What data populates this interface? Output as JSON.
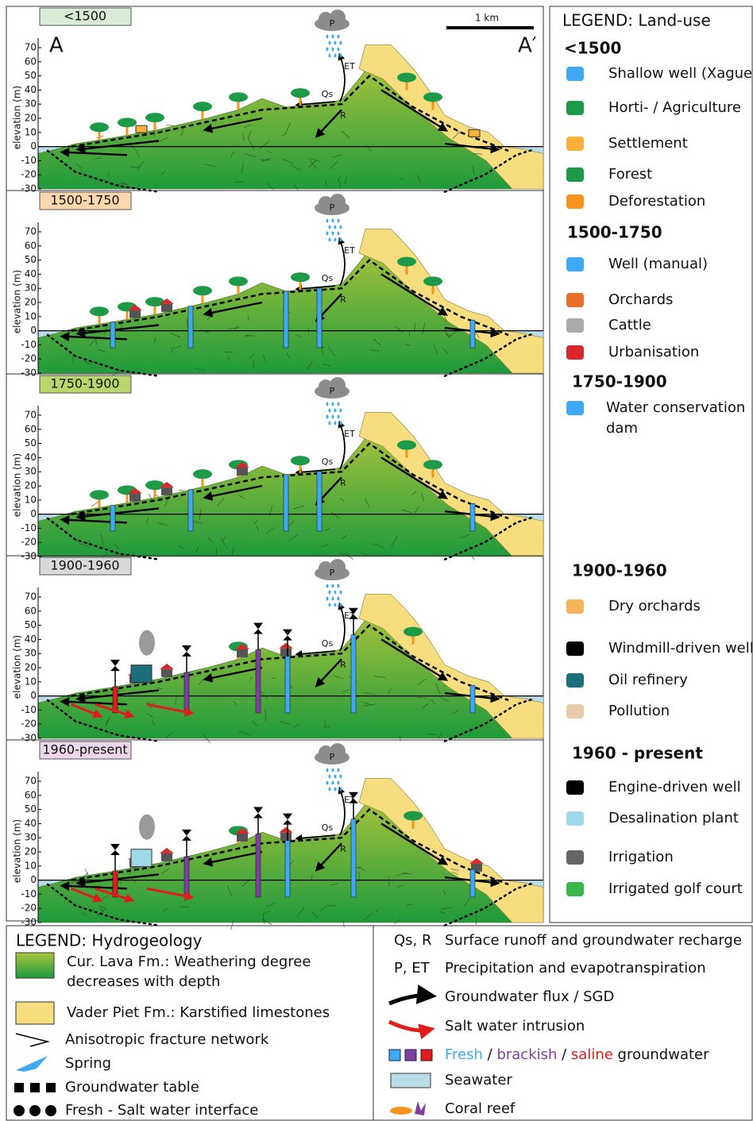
{
  "panels": [
    {
      "period": "<1500",
      "color": "#d6ecd6"
    },
    {
      "period": "1500-1750",
      "color": "#fcd7ad"
    },
    {
      "period": "1750-1900",
      "color": "#b9d66c"
    },
    {
      "period": "1900-1960",
      "color": "#d9d9d9"
    },
    {
      "period": "1960-present",
      "color": "#ecd6ea"
    }
  ],
  "axis": {
    "label": "elevation (m)",
    "ticks": [
      70,
      60,
      50,
      40,
      30,
      20,
      10,
      0,
      -10,
      -20,
      -30
    ]
  },
  "section": {
    "start": "A",
    "end": "A′",
    "scale": "1 km"
  },
  "flow_labels": {
    "precipitation": "P",
    "evapotranspiration": "ET",
    "runoff": "Qs",
    "recharge": "R"
  },
  "land_use_legend": {
    "title": "LEGEND: Land-use",
    "groups": [
      {
        "period": "<1500",
        "items": [
          {
            "lines": [
              "Shallow well (Xaguey)"
            ]
          },
          {
            "lines": [
              "Horti- / Agriculture"
            ]
          },
          {
            "lines": [
              "Settlement"
            ]
          },
          {
            "lines": [
              "Forest"
            ]
          },
          {
            "lines": [
              "Deforestation"
            ]
          }
        ]
      },
      {
        "period": "1500-1750",
        "items": [
          {
            "lines": [
              "Well (manual)"
            ]
          },
          {
            "lines": [
              "Orchards"
            ]
          },
          {
            "lines": [
              "Cattle"
            ]
          },
          {
            "lines": [
              "Urbanisation"
            ]
          }
        ]
      },
      {
        "period": "1750-1900",
        "items": [
          {
            "lines": [
              "Water conservation",
              "dam"
            ]
          }
        ]
      },
      {
        "period": "1900-1960",
        "items": [
          {
            "lines": [
              "Dry orchards"
            ]
          },
          {
            "lines": [
              "Windmill-driven well"
            ]
          },
          {
            "lines": [
              "Oil refinery"
            ]
          },
          {
            "lines": [
              "Pollution"
            ]
          }
        ]
      },
      {
        "period": "1960 - present",
        "items": [
          {
            "lines": [
              "Engine-driven well"
            ]
          },
          {
            "lines": [
              "Desalination plant"
            ]
          },
          {
            "lines": [
              "Irrigation"
            ]
          },
          {
            "lines": [
              "Irrigated golf court"
            ]
          }
        ]
      }
    ]
  },
  "hydro_legend": {
    "title": "LEGEND: Hydrogeology",
    "items": [
      {
        "lines": [
          "Cur. Lava Fm.: Weathering degree",
          "decreases with depth"
        ]
      },
      {
        "lines": [
          "Vader Piet Fm.: Karstified limestones"
        ]
      },
      {
        "lines": [
          "Anisotropic fracture network"
        ]
      },
      {
        "lines": [
          "Spring"
        ]
      },
      {
        "lines": [
          "Groundwater table"
        ]
      },
      {
        "lines": [
          "Fresh - Salt water interface"
        ]
      }
    ]
  },
  "process_legend": {
    "items": [
      {
        "key": "Qs, R",
        "label": "Surface runoff and groundwater recharge"
      },
      {
        "key": "P, ET",
        "label": "Precipitation and evapotranspiration"
      },
      {
        "label": "Groundwater flux / SGD"
      },
      {
        "label": "Salt water intrusion"
      },
      {
        "parts": [
          {
            "text": "Fresh",
            "color": "#3fa9f5"
          },
          {
            "text": " / ",
            "color": "#111111"
          },
          {
            "text": "brackish",
            "color": "#7b3fa0"
          },
          {
            "text": " / ",
            "color": "#111111"
          },
          {
            "text": "saline",
            "color": "#e21b1b"
          },
          {
            "text": " groundwater",
            "color": "#111111"
          }
        ]
      },
      {
        "label": "Seawater"
      },
      {
        "label": "Coral reef"
      }
    ]
  }
}
